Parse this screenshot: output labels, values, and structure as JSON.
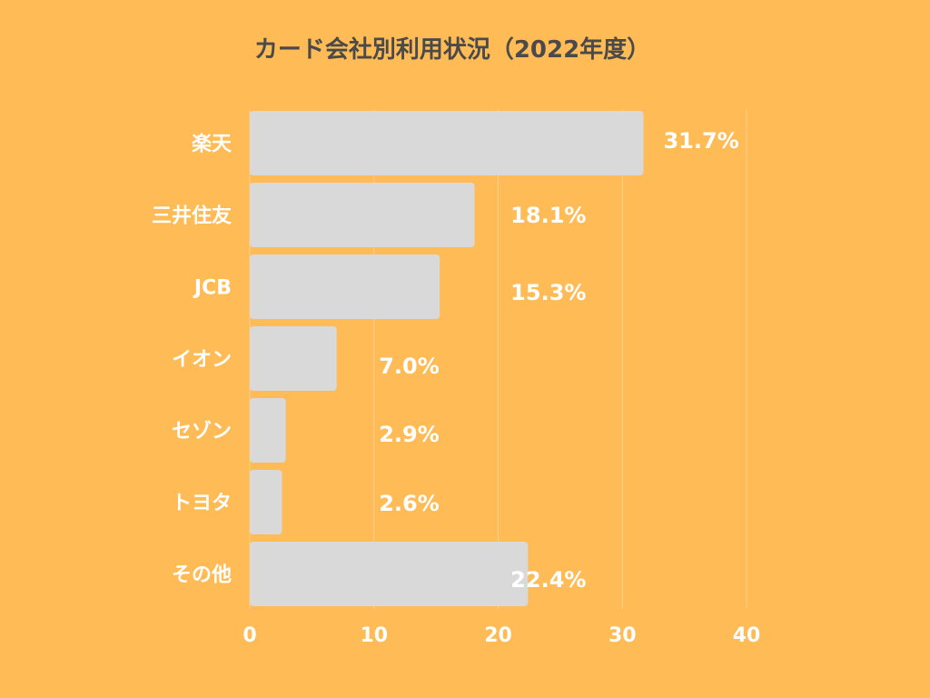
{
  "colors": {
    "background": "#FFBB55",
    "bar": "#D9D9D9",
    "text": "#FFFFFF",
    "title": "#4A4A4A"
  },
  "chart_data": {
    "type": "bar",
    "orientation": "horizontal",
    "title": "カード会社別利用状況（2022年度）",
    "categories": [
      "楽天",
      "三井住友",
      "JCB",
      "イオン",
      "セゾン",
      "トヨタ",
      "その他"
    ],
    "values": [
      31.7,
      18.1,
      15.3,
      7.0,
      2.9,
      2.6,
      22.4
    ],
    "value_labels": [
      "31.7%",
      "18.1%",
      "15.3%",
      "7.0%",
      "2.9%",
      "2.6%",
      "22.4%"
    ],
    "xlim": [
      0,
      40
    ],
    "xticks": [
      0,
      10,
      20,
      30,
      40
    ],
    "xlabel": "",
    "ylabel": "",
    "grid": true,
    "legend": "none"
  }
}
